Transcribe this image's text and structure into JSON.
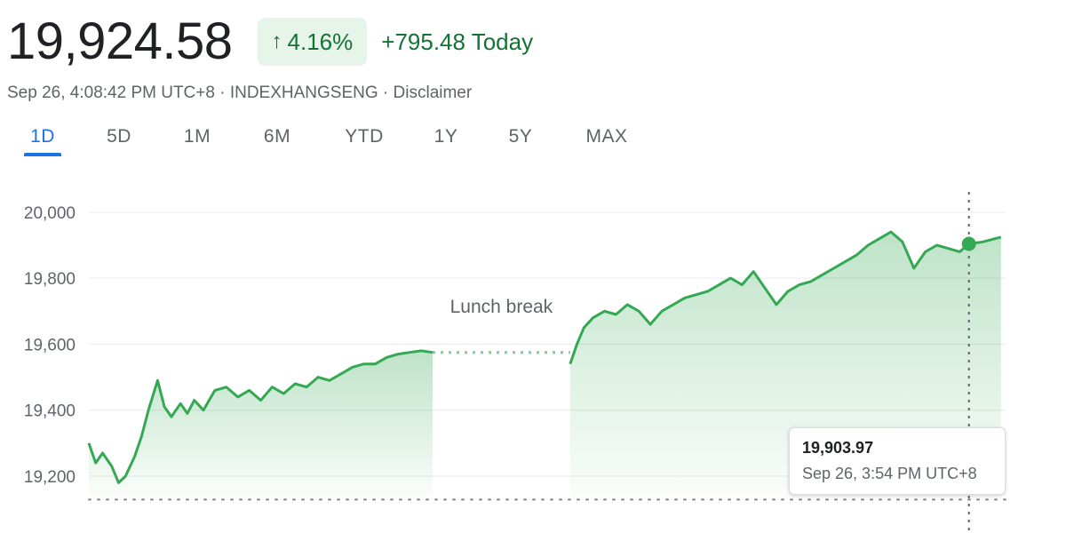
{
  "quote": {
    "price": "19,924.58",
    "change_percent": "4.16%",
    "arrow_icon": "arrow-up-icon",
    "change_today": "+795.48 Today",
    "timestamp": "Sep 26, 4:08:42 PM UTC+8",
    "separator": "·",
    "exchange": "INDEXHANGSENG",
    "disclaimer": "Disclaimer"
  },
  "colors": {
    "positive": "#137333",
    "line": "#34a853",
    "accent": "#1a73e8"
  },
  "tabs": [
    "1D",
    "5D",
    "1M",
    "6M",
    "YTD",
    "1Y",
    "5Y",
    "MAX"
  ],
  "active_tab": "1D",
  "tooltip": {
    "value": "19,903.97",
    "time": "Sep 26, 3:54 PM UTC+8"
  },
  "chart_data": {
    "type": "area",
    "title": "",
    "xlabel": "",
    "ylabel": "",
    "ylim": [
      19130,
      20040
    ],
    "y_ticks": [
      19200,
      19400,
      19600,
      19800,
      20000
    ],
    "y_tick_labels": [
      "19,200",
      "19,400",
      "19,600",
      "19,800",
      "20,000"
    ],
    "grid": true,
    "previous_close": 19129.1,
    "session_range": [
      "09:30",
      "16:10"
    ],
    "annotation": "Lunch break",
    "lunch_break": [
      "12:00",
      "13:00"
    ],
    "highlighted_point": {
      "x": "15:54",
      "y": 19903.97
    },
    "series": [
      {
        "x": [
          "09:30",
          "09:33",
          "09:36",
          "09:40",
          "09:43",
          "09:46",
          "09:50",
          "09:53",
          "09:56",
          "10:00",
          "10:03",
          "10:06",
          "10:10",
          "10:13",
          "10:16",
          "10:20",
          "10:25",
          "10:30",
          "10:35",
          "10:40",
          "10:45",
          "10:50",
          "10:55",
          "11:00",
          "11:05",
          "11:10",
          "11:15",
          "11:20",
          "11:25",
          "11:30",
          "11:35",
          "11:40",
          "11:45",
          "11:50",
          "11:55",
          "12:00",
          "13:00",
          "13:03",
          "13:06",
          "13:10",
          "13:15",
          "13:20",
          "13:25",
          "13:30",
          "13:35",
          "13:40",
          "13:45",
          "13:50",
          "13:55",
          "14:00",
          "14:05",
          "14:10",
          "14:15",
          "14:20",
          "14:25",
          "14:30",
          "14:35",
          "14:40",
          "14:45",
          "14:50",
          "14:55",
          "15:00",
          "15:05",
          "15:10",
          "15:15",
          "15:20",
          "15:25",
          "15:30",
          "15:35",
          "15:40",
          "15:45",
          "15:50",
          "15:54",
          "16:00",
          "16:08"
        ],
        "y": [
          19300,
          19240,
          19270,
          19230,
          19180,
          19200,
          19260,
          19320,
          19400,
          19490,
          19410,
          19380,
          19420,
          19390,
          19430,
          19400,
          19460,
          19470,
          19440,
          19460,
          19430,
          19470,
          19450,
          19480,
          19470,
          19500,
          19490,
          19510,
          19530,
          19540,
          19540,
          19560,
          19570,
          19575,
          19580,
          19575,
          19540,
          19600,
          19650,
          19680,
          19700,
          19690,
          19720,
          19700,
          19660,
          19700,
          19720,
          19740,
          19750,
          19760,
          19780,
          19800,
          19780,
          19820,
          19770,
          19720,
          19760,
          19780,
          19790,
          19810,
          19830,
          19850,
          19870,
          19900,
          19920,
          19940,
          19910,
          19830,
          19880,
          19900,
          19890,
          19880,
          19903.97,
          19910,
          19924.58
        ]
      }
    ]
  }
}
